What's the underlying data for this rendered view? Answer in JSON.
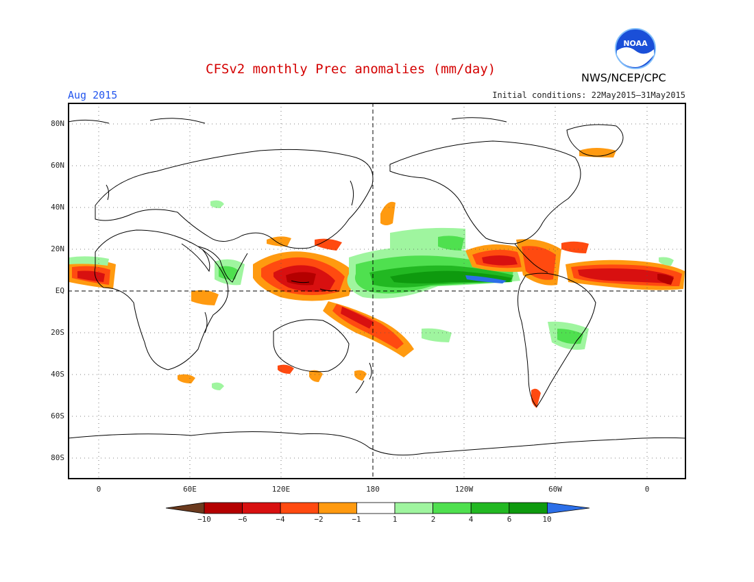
{
  "header": {
    "title": "CFSv2 monthly Prec anomalies (mm/day)",
    "month": "Aug 2015",
    "init_conditions": "Initial conditions: 22May2015–31May2015",
    "org": "NWS/NCEP/CPC",
    "logo_text": "NOAA"
  },
  "map": {
    "lat_labels": [
      "80N",
      "60N",
      "40N",
      "20N",
      "EQ",
      "20S",
      "40S",
      "60S",
      "80S"
    ],
    "lon_labels": [
      "0",
      "60E",
      "120E",
      "180",
      "120W",
      "60W",
      "0"
    ]
  },
  "colorbar": {
    "labels": [
      "−10",
      "−6",
      "−4",
      "−2",
      "−1",
      "1",
      "2",
      "4",
      "6",
      "10"
    ],
    "colors": [
      "#6b3a1e",
      "#b40000",
      "#d81010",
      "#ff4a10",
      "#ff9a10",
      "#ffffff",
      "#9ff59f",
      "#4fe04f",
      "#22b822",
      "#0e9a0e",
      "#2c6fe8"
    ]
  },
  "colors": {
    "title": "#d40000",
    "month": "#2255ee",
    "noaa_blue": "#1a4fd8"
  }
}
